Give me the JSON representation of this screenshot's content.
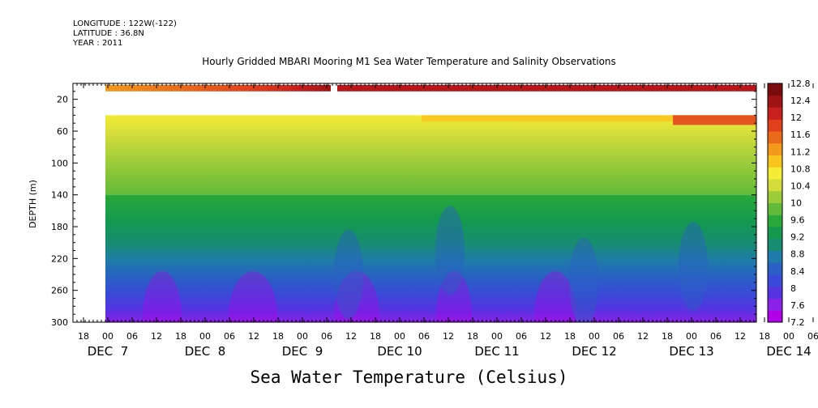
{
  "header": {
    "longitude": "LONGITUDE : 122W(-122)",
    "latitude": "LATITUDE : 36.8N",
    "year": "YEAR : 2011"
  },
  "chart_data": {
    "type": "heatmap",
    "title": "Hourly Gridded MBARI Mooring M1 Sea Water Temperature and Salinity Observations",
    "xlabel": "Sea Water Temperature (Celsius)",
    "ylabel": "DEPTH (m)",
    "y_axis": {
      "range": [
        0,
        300
      ],
      "inverted": true,
      "ticks": [
        20,
        60,
        100,
        140,
        180,
        220,
        260,
        300
      ]
    },
    "x_axis": {
      "hour_ticks": [
        "18",
        "00",
        "06",
        "12",
        "18",
        "00",
        "06",
        "12",
        "18",
        "00",
        "06",
        "12",
        "18",
        "00",
        "06",
        "12",
        "18",
        "00",
        "06",
        "12",
        "18",
        "00",
        "06",
        "12",
        "18",
        "00",
        "06",
        "12",
        "18",
        "00",
        "06",
        "12",
        "18",
        "00",
        "06",
        "12"
      ],
      "day_labels": [
        "DEC  7",
        "DEC  8",
        "DEC  9",
        "DEC 10",
        "DEC 11",
        "DEC 12",
        "DEC 13",
        "DEC 14"
      ]
    },
    "colorbar": {
      "levels": [
        "7.2",
        "7.6",
        "8",
        "8.4",
        "8.8",
        "9.2",
        "9.6",
        "10",
        "10.4",
        "10.8",
        "11.2",
        "11.6",
        "12",
        "12.4",
        "12.8"
      ],
      "colors": [
        "#b000e8",
        "#8a22e8",
        "#5533e0",
        "#3a4ad8",
        "#2a5fc4",
        "#1f7aaa",
        "#178c70",
        "#139a4e",
        "#2aa83a",
        "#62ba3a",
        "#9ccc3a",
        "#d2dc3a",
        "#f4ec36",
        "#f8c41e",
        "#f39a1c",
        "#ea6a1c",
        "#e0401e",
        "#c8201e",
        "#a01416",
        "#7a0c0e"
      ]
    },
    "grid": false,
    "legend": "colorbar-right"
  }
}
